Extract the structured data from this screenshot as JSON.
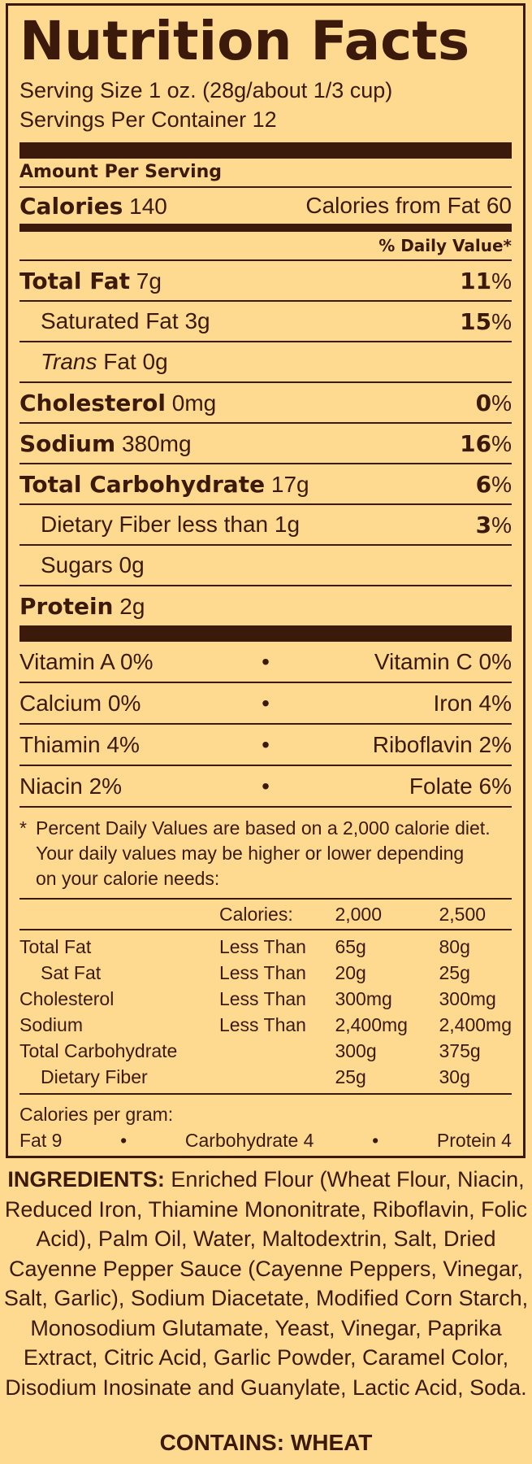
{
  "label": {
    "title": "Nutrition Facts",
    "serving_size": "Serving Size 1 oz. (28g/about 1/3 cup)",
    "servings_per_container": "Servings Per Container 12",
    "amount_per_serving": "Amount Per Serving",
    "calories_label": "Calories",
    "calories_value": "140",
    "calories_from_fat": "Calories from Fat 60",
    "daily_value_header": "% Daily Value*",
    "nutrients": [
      {
        "name": "Total Fat",
        "amount": "7g",
        "dv": "11",
        "bold": true
      },
      {
        "name": "Saturated Fat",
        "amount": "3g",
        "dv": "15",
        "bold": false
      },
      {
        "name": "Trans",
        "suffix": "Fat 0g",
        "amount": "",
        "dv": "",
        "bold": false
      },
      {
        "name": "Cholesterol",
        "amount": "0mg",
        "dv": "0",
        "bold": true
      },
      {
        "name": "Sodium",
        "amount": "380mg",
        "dv": "16",
        "bold": true
      },
      {
        "name": "Total Carbohydrate",
        "amount": "17g",
        "dv": "6",
        "bold": true
      },
      {
        "name": "Dietary Fiber less than",
        "amount": "1g",
        "dv": "3",
        "bold": false
      },
      {
        "name": "Sugars",
        "amount": "0g",
        "dv": "",
        "bold": false
      },
      {
        "name": "Protein",
        "amount": "2g",
        "dv": "",
        "bold": true
      }
    ],
    "percent_sign": "%",
    "vitamins": [
      {
        "left": "Vitamin A 0%",
        "right": "Vitamin C 0%"
      },
      {
        "left": "Calcium 0%",
        "right": "Iron 4%"
      },
      {
        "left": "Thiamin 4%",
        "right": "Riboflavin 2%"
      },
      {
        "left": "Niacin 2%",
        "right": "Folate 6%"
      }
    ],
    "bullet": "•",
    "footnote_asterisk": "*",
    "footnote_line1": "Percent Daily Values are based on a 2,000 calorie diet.",
    "footnote_line2": "Your daily values may be higher or lower depending",
    "footnote_line3": "on your calorie needs:",
    "dv_table": {
      "head": [
        "",
        "Calories:",
        "2,000",
        "2,500"
      ],
      "rows": [
        [
          "Total Fat",
          "Less Than",
          "65g",
          "80g"
        ],
        [
          "Sat Fat",
          "Less Than",
          "20g",
          "25g"
        ],
        [
          "Cholesterol",
          "Less Than",
          "300mg",
          "300mg"
        ],
        [
          "Sodium",
          "Less Than",
          "2,400mg",
          "2,400mg"
        ],
        [
          "Total Carbohydrate",
          "",
          "300g",
          "375g"
        ],
        [
          "Dietary Fiber",
          "",
          "25g",
          "30g"
        ]
      ]
    },
    "calories_per_gram": "Calories per gram:",
    "cpg_fat": "Fat 9",
    "cpg_carb": "Carbohydrate 4",
    "cpg_protein": "Protein 4"
  },
  "ingredients": {
    "label": "INGREDIENTS:",
    "lines": [
      " Enriched Flour (Wheat Flour, Niacin,",
      "Reduced Iron, Thiamine Mononitrate, Riboflavin, Folic",
      "Acid), Palm Oil, Water, Maltodextrin, Salt, Dried",
      "Cayenne Pepper Sauce (Cayenne Peppers, Vinegar,",
      "Salt, Garlic), Sodium Diacetate, Modified Corn Starch,",
      "Monosodium Glutamate, Yeast, Vinegar, Paprika",
      "Extract, Citric Acid, Garlic Powder, Caramel Color,",
      "Disodium Inosinate and Guanylate, Lactic Acid, Soda."
    ],
    "contains": "CONTAINS: WHEAT"
  }
}
